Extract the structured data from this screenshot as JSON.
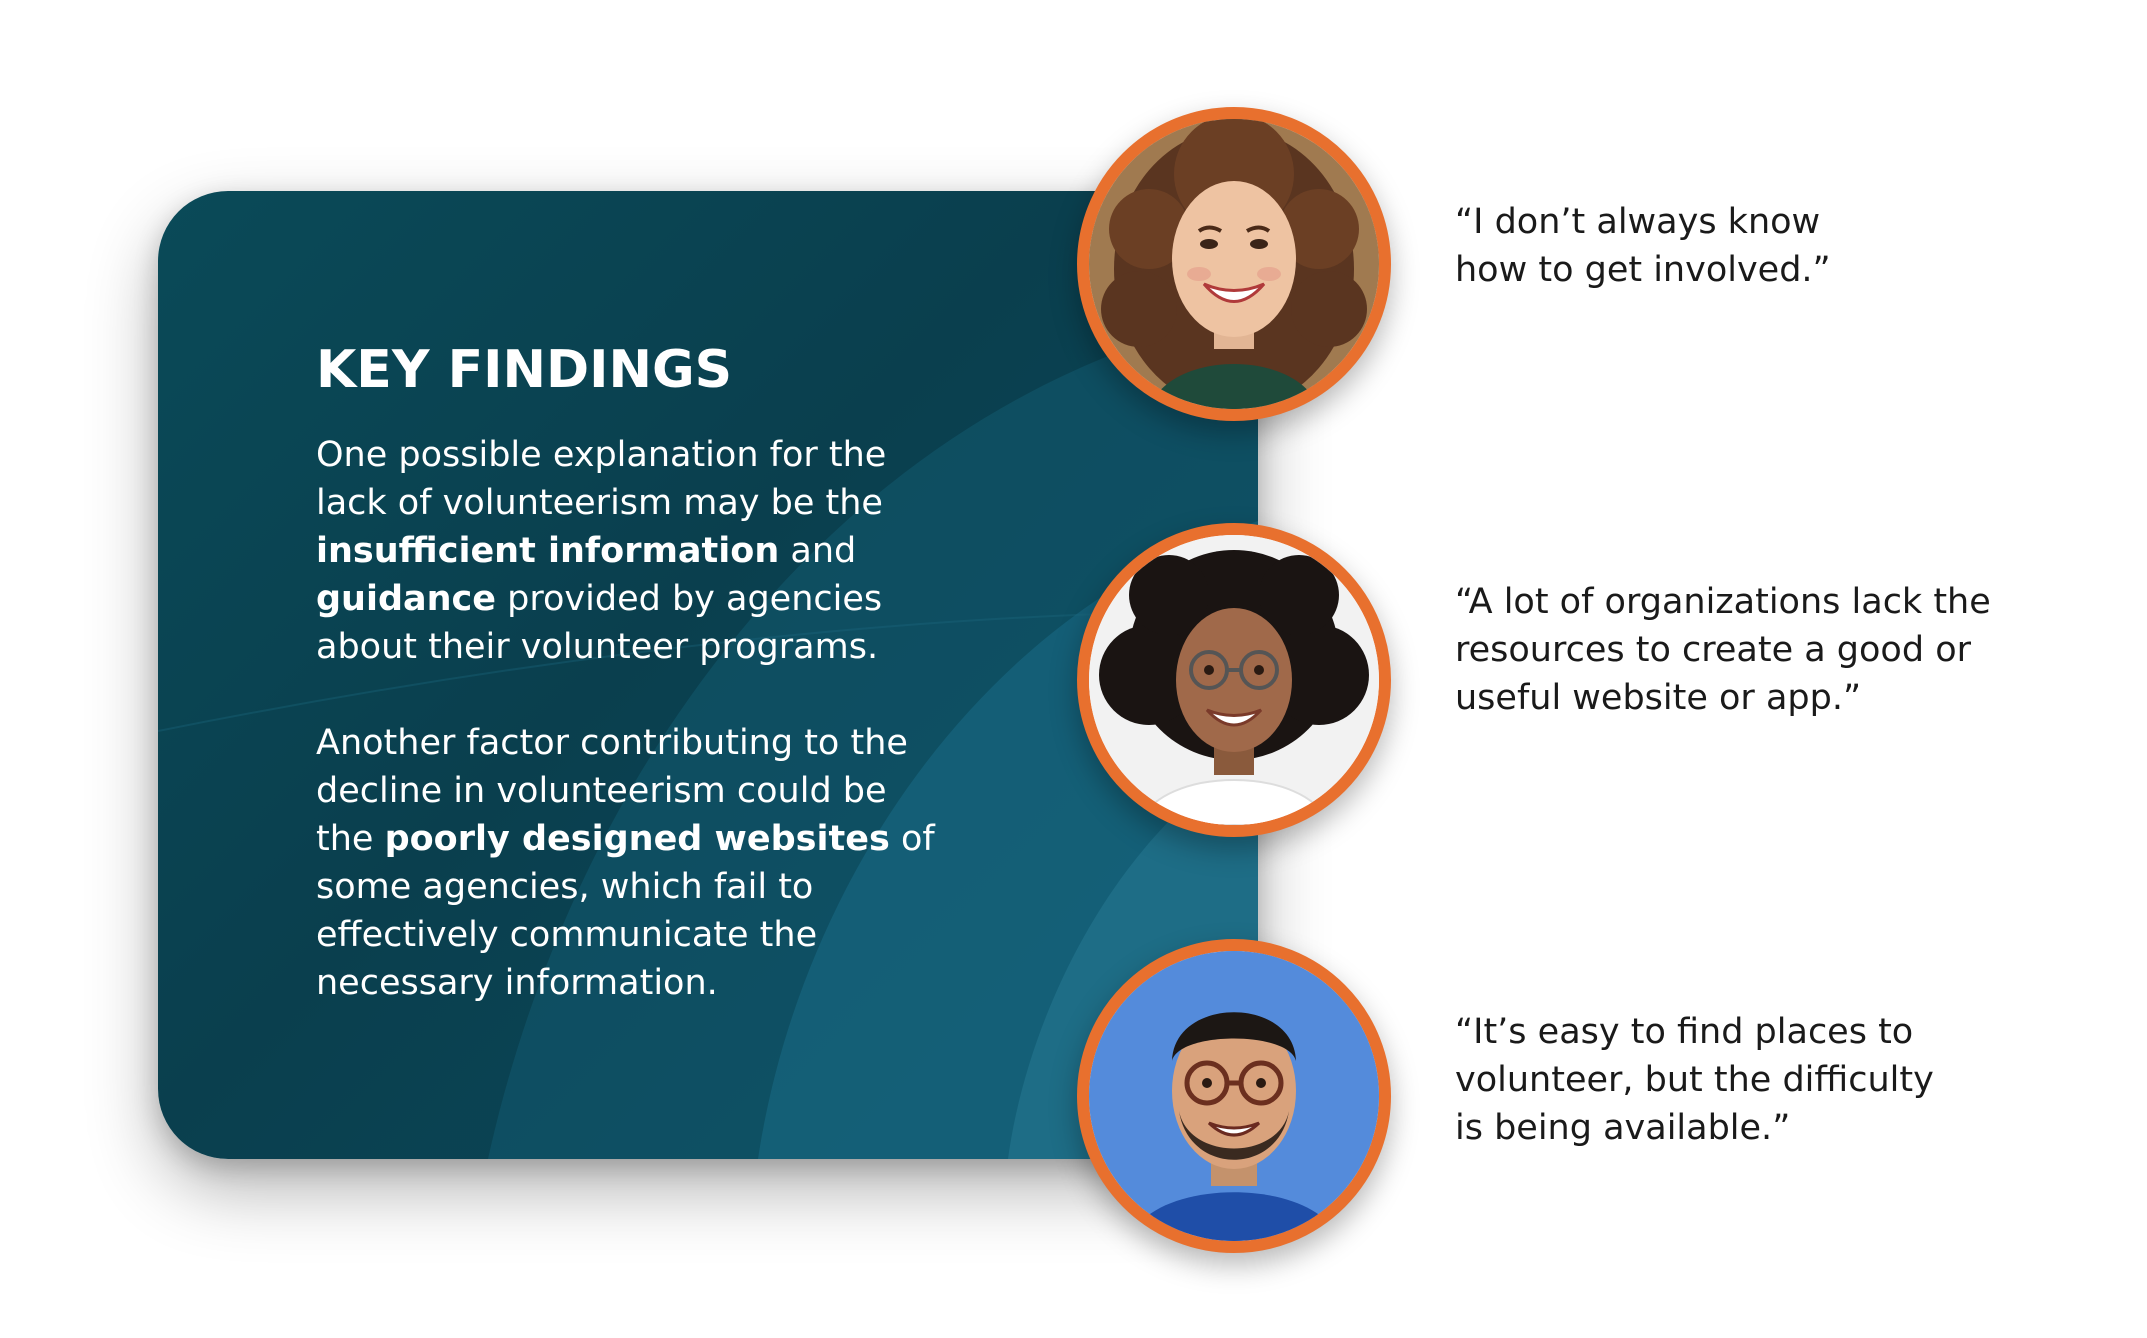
{
  "key_findings": {
    "title": "KEY FINDINGS",
    "paragraph_1": {
      "line_1": "One possible explanation for the",
      "line_2": "lack of volunteerism may be the",
      "line_3_bold": "insufficient information",
      "line_3_rest": " and",
      "line_4_bold": "guidance",
      "line_4_rest": " provided by agencies",
      "line_5": "about their volunteer programs."
    },
    "paragraph_2": {
      "line_1": "Another factor contributing to the",
      "line_2": "decline in volunteerism could be",
      "line_3_start": "the ",
      "line_3_bold": "poorly designed websites",
      "line_3_rest": " of",
      "line_4": "some agencies, which fail to",
      "line_5": "effectively communicate the",
      "line_6": "necessary information."
    }
  },
  "testimonials": [
    {
      "avatar_icon": "woman-curly-hair-portrait",
      "lines": [
        "“I don’t always know",
        "how to get involved.”"
      ]
    },
    {
      "avatar_icon": "woman-glasses-portrait",
      "lines": [
        "“A lot of organizations lack the",
        "resources to create a good or",
        "useful website or app.”"
      ]
    },
    {
      "avatar_icon": "man-glasses-portrait",
      "lines": [
        "“It’s easy to find places to",
        "volunteer, but the difficulty",
        "is being available.”"
      ]
    }
  ],
  "colors": {
    "card": "#0a4354",
    "accent_ring": "#e8702e",
    "quote_text": "#1a1a1a"
  }
}
